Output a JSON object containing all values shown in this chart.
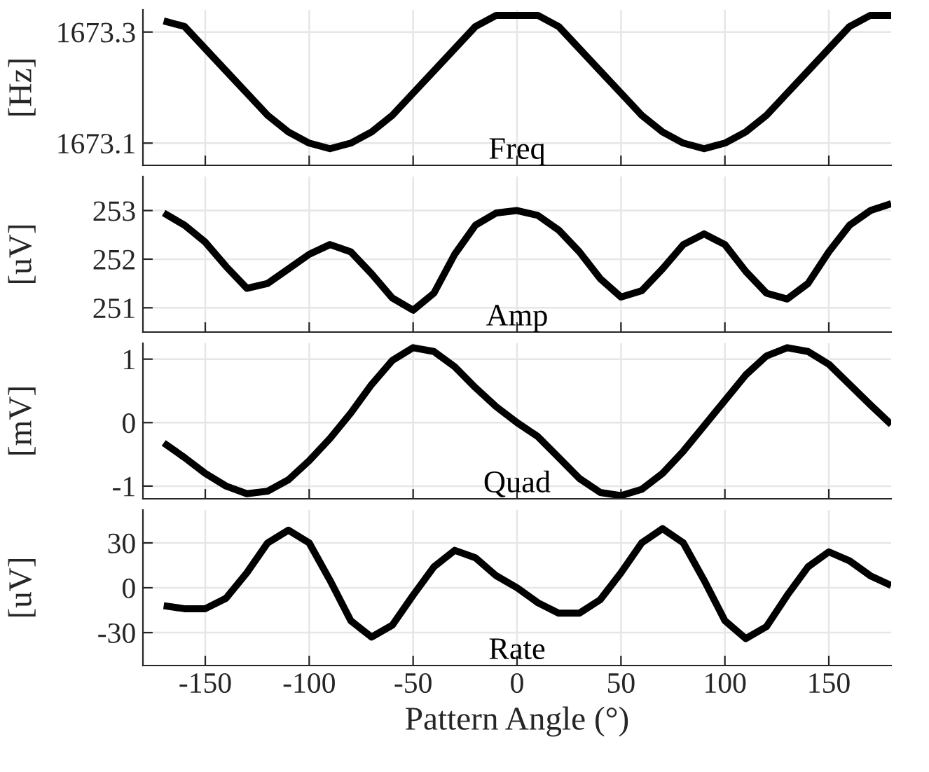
{
  "chart_data": [
    {
      "type": "line",
      "ylabel": "[Hz]",
      "annotations": [
        "Freq"
      ],
      "xlim": [
        -180,
        180
      ],
      "xticks": [
        -150,
        -100,
        -50,
        0,
        50,
        100,
        150
      ],
      "ylim": [
        1673.06,
        1673.34
      ],
      "yticks": [
        1673.1,
        1673.3
      ],
      "grid": true,
      "tick_labels": "y",
      "x": [
        -170,
        -160,
        -150,
        -140,
        -130,
        -120,
        -110,
        -100,
        -90,
        -80,
        -70,
        -60,
        -50,
        -40,
        -30,
        -20,
        -10,
        0,
        10,
        20,
        30,
        40,
        50,
        60,
        70,
        80,
        90,
        100,
        110,
        120,
        130,
        140,
        150,
        160,
        170,
        180
      ],
      "series": [
        {
          "color": "#000000",
          "values": [
            1673.32,
            1673.31,
            1673.27,
            1673.23,
            1673.19,
            1673.15,
            1673.12,
            1673.1,
            1673.09,
            1673.1,
            1673.12,
            1673.15,
            1673.19,
            1673.23,
            1673.27,
            1673.31,
            1673.33,
            1673.33,
            1673.33,
            1673.31,
            1673.27,
            1673.23,
            1673.19,
            1673.15,
            1673.12,
            1673.1,
            1673.09,
            1673.1,
            1673.12,
            1673.15,
            1673.19,
            1673.23,
            1673.27,
            1673.31,
            1673.33,
            1673.33
          ]
        }
      ]
    },
    {
      "type": "line",
      "ylabel": "[uV]",
      "annotations": [
        "Amp"
      ],
      "xlim": [
        -180,
        180
      ],
      "xticks": [
        -150,
        -100,
        -50,
        0,
        50,
        100,
        150
      ],
      "ylim": [
        250.5,
        253.7
      ],
      "yticks": [
        251,
        252,
        253
      ],
      "grid": true,
      "tick_labels": "y",
      "x": [
        -170,
        -160,
        -150,
        -140,
        -130,
        -120,
        -110,
        -100,
        -90,
        -80,
        -70,
        -60,
        -50,
        -40,
        -30,
        -20,
        -10,
        0,
        10,
        20,
        30,
        40,
        50,
        60,
        70,
        80,
        90,
        100,
        110,
        120,
        130,
        140,
        150,
        160,
        170,
        180
      ],
      "series": [
        {
          "color": "#000000",
          "values": [
            252.95,
            252.7,
            252.35,
            251.85,
            251.4,
            251.5,
            251.8,
            252.1,
            252.3,
            252.15,
            251.7,
            251.2,
            250.95,
            251.3,
            252.1,
            252.7,
            252.95,
            253.0,
            252.9,
            252.6,
            252.15,
            251.6,
            251.22,
            251.35,
            251.8,
            252.3,
            252.52,
            252.3,
            251.75,
            251.3,
            251.18,
            251.5,
            252.15,
            252.7,
            253.0,
            253.14
          ]
        }
      ]
    },
    {
      "type": "line",
      "ylabel": "[mV]",
      "annotations": [
        "Quad"
      ],
      "xlim": [
        -180,
        180
      ],
      "xticks": [
        -150,
        -100,
        -50,
        0,
        50,
        100,
        150
      ],
      "ylim": [
        -1.2,
        1.25
      ],
      "yticks": [
        -1,
        0,
        1
      ],
      "grid": true,
      "tick_labels": "y",
      "x": [
        -170,
        -160,
        -150,
        -140,
        -130,
        -120,
        -110,
        -100,
        -90,
        -80,
        -70,
        -60,
        -50,
        -40,
        -30,
        -20,
        -10,
        0,
        10,
        20,
        30,
        40,
        50,
        60,
        70,
        80,
        90,
        100,
        110,
        120,
        130,
        140,
        150,
        160,
        170,
        180
      ],
      "series": [
        {
          "color": "#000000",
          "values": [
            -0.32,
            -0.55,
            -0.8,
            -1.0,
            -1.12,
            -1.08,
            -0.9,
            -0.6,
            -0.25,
            0.15,
            0.6,
            0.98,
            1.18,
            1.12,
            0.88,
            0.55,
            0.25,
            0.0,
            -0.22,
            -0.55,
            -0.88,
            -1.1,
            -1.15,
            -1.05,
            -0.8,
            -0.45,
            -0.05,
            0.35,
            0.75,
            1.05,
            1.18,
            1.12,
            0.92,
            0.6,
            0.28,
            -0.03
          ]
        }
      ]
    },
    {
      "type": "line",
      "ylabel": "[uV]",
      "xlabel": "Pattern Angle (°)",
      "annotations": [
        "Rate"
      ],
      "xlim": [
        -180,
        180
      ],
      "xticks": [
        -150,
        -100,
        -50,
        0,
        50,
        100,
        150
      ],
      "ylim": [
        -52,
        52
      ],
      "yticks": [
        -30,
        0,
        30
      ],
      "grid": true,
      "x": [
        -170,
        -160,
        -150,
        -140,
        -130,
        -120,
        -110,
        -100,
        -90,
        -80,
        -70,
        -60,
        -50,
        -40,
        -30,
        -20,
        -10,
        0,
        10,
        20,
        30,
        40,
        50,
        60,
        70,
        80,
        90,
        100,
        110,
        120,
        130,
        140,
        150,
        160,
        170,
        180
      ],
      "series": [
        {
          "color": "#000000",
          "values": [
            -12,
            -14,
            -14,
            -7,
            10,
            30,
            38.5,
            30,
            5,
            -22,
            -33,
            -25,
            -5,
            14,
            25,
            20,
            8,
            0,
            -10,
            -17,
            -17,
            -8,
            10,
            30,
            39.5,
            30,
            5,
            -22,
            -34,
            -26,
            -5,
            14,
            24,
            18,
            8,
            1.5
          ]
        }
      ]
    }
  ]
}
